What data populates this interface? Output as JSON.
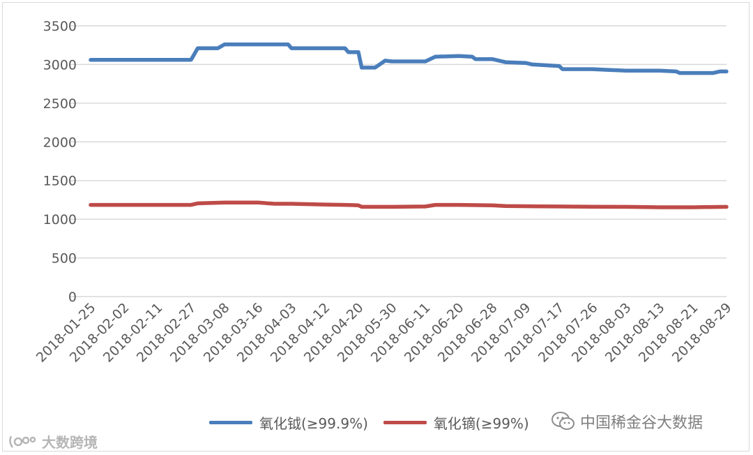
{
  "chart_data": {
    "type": "line",
    "categories": [
      "2018-01-25",
      "2018-02-02",
      "2018-02-11",
      "2018-02-27",
      "2018-03-08",
      "2018-03-16",
      "2018-04-03",
      "2018-04-12",
      "2018-04-20",
      "2018-05-30",
      "2018-06-11",
      "2018-06-20",
      "2018-06-28",
      "2018-07-09",
      "2018-07-17",
      "2018-07-26",
      "2018-08-03",
      "2018-08-13",
      "2018-08-21",
      "2018-08-29"
    ],
    "yticks": [
      "0",
      "500",
      "1000",
      "1500",
      "2000",
      "2500",
      "3000",
      "3500"
    ],
    "ylim": [
      0,
      3500
    ],
    "grid": true,
    "legend_position": "bottom",
    "series": [
      {
        "name": "氧化钺(≥99.9%)",
        "color": "#4a7ebb",
        "points": [
          [
            0,
            3060
          ],
          [
            1,
            3060
          ],
          [
            2,
            3060
          ],
          [
            3,
            3060
          ],
          [
            3.2,
            3210
          ],
          [
            3.8,
            3210
          ],
          [
            4,
            3260
          ],
          [
            5,
            3260
          ],
          [
            5.9,
            3260
          ],
          [
            6,
            3210
          ],
          [
            7,
            3210
          ],
          [
            7.6,
            3210
          ],
          [
            7.7,
            3160
          ],
          [
            8,
            3160
          ],
          [
            8.1,
            2960
          ],
          [
            8.5,
            2960
          ],
          [
            8.8,
            3050
          ],
          [
            9,
            3040
          ],
          [
            10,
            3040
          ],
          [
            10.3,
            3100
          ],
          [
            11,
            3110
          ],
          [
            11.4,
            3100
          ],
          [
            11.5,
            3070
          ],
          [
            12,
            3070
          ],
          [
            12.4,
            3030
          ],
          [
            13,
            3020
          ],
          [
            13.2,
            3000
          ],
          [
            14,
            2980
          ],
          [
            14.1,
            2940
          ],
          [
            15,
            2940
          ],
          [
            15.5,
            2930
          ],
          [
            16,
            2920
          ],
          [
            17,
            2920
          ],
          [
            17.5,
            2910
          ],
          [
            17.6,
            2890
          ],
          [
            18,
            2890
          ],
          [
            18.6,
            2890
          ],
          [
            18.8,
            2910
          ],
          [
            19,
            2910
          ]
        ]
      },
      {
        "name": "氧化镝(≥99%)",
        "color": "#be4b48",
        "points": [
          [
            0,
            1185
          ],
          [
            1,
            1185
          ],
          [
            2,
            1185
          ],
          [
            3,
            1185
          ],
          [
            3.2,
            1205
          ],
          [
            4,
            1215
          ],
          [
            5,
            1215
          ],
          [
            5.5,
            1200
          ],
          [
            6,
            1200
          ],
          [
            7,
            1190
          ],
          [
            7.6,
            1185
          ],
          [
            8,
            1180
          ],
          [
            8.1,
            1160
          ],
          [
            9,
            1160
          ],
          [
            10,
            1165
          ],
          [
            10.3,
            1185
          ],
          [
            11,
            1185
          ],
          [
            12,
            1180
          ],
          [
            12.4,
            1170
          ],
          [
            13,
            1168
          ],
          [
            14,
            1165
          ],
          [
            15,
            1162
          ],
          [
            16,
            1160
          ],
          [
            17,
            1155
          ],
          [
            18,
            1155
          ],
          [
            18.6,
            1158
          ],
          [
            19,
            1160
          ]
        ]
      }
    ]
  },
  "watermarks": {
    "right_text": "中国稀金谷大数据",
    "left_text": "大数跨境"
  }
}
